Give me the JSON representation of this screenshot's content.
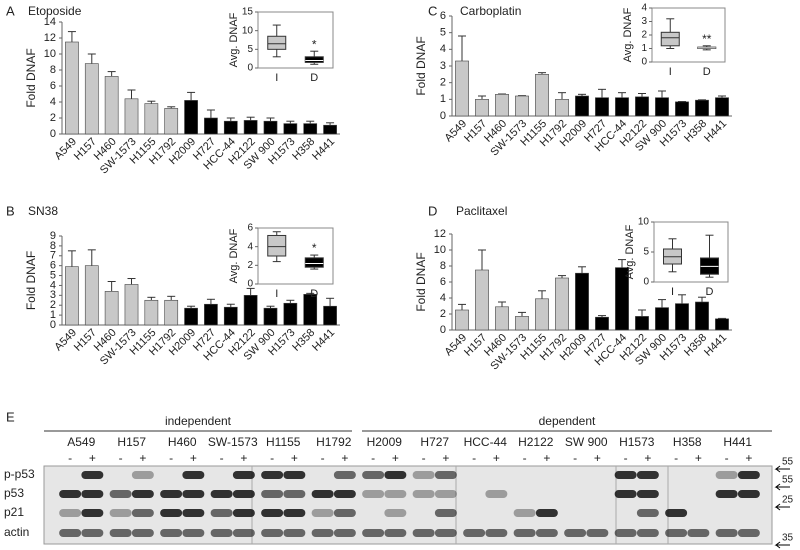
{
  "chart_data": [
    {
      "type": "bar",
      "label": "A",
      "title": "Etoposide",
      "ylabel": "Fold DNAF",
      "categories": [
        "A549",
        "H157",
        "H460",
        "SW-1573",
        "H1155",
        "H1792",
        "H2009",
        "H727",
        "HCC-44",
        "H2122",
        "SW 900",
        "H1573",
        "H358",
        "H441"
      ],
      "values": [
        11.5,
        8.8,
        7.2,
        4.4,
        3.8,
        3.2,
        4.2,
        2.0,
        1.6,
        1.7,
        1.6,
        1.3,
        1.3,
        1.1
      ],
      "errors": [
        1.3,
        1.2,
        0.6,
        1.1,
        0.3,
        0.2,
        1.0,
        1.0,
        0.4,
        0.4,
        0.4,
        0.3,
        0.3,
        0.3
      ],
      "colors": [
        "#c8c8c8",
        "#c8c8c8",
        "#c8c8c8",
        "#c8c8c8",
        "#c8c8c8",
        "#c8c8c8",
        "#000000",
        "#000000",
        "#000000",
        "#000000",
        "#000000",
        "#000000",
        "#000000",
        "#000000"
      ],
      "ylim": [
        0,
        14
      ],
      "yticks": [
        0,
        2,
        4,
        6,
        8,
        10,
        12,
        14
      ],
      "inset": {
        "type": "box",
        "ylabel": "Avg. DNAF",
        "categories": [
          "I",
          "D"
        ],
        "boxes": [
          {
            "min": 3,
            "q1": 5,
            "median": 6.5,
            "q3": 8.5,
            "max": 11.5
          },
          {
            "min": 1,
            "q1": 1.5,
            "median": 2,
            "q3": 3,
            "max": 4.5
          }
        ],
        "colors": [
          "#c8c8c8",
          "#000000"
        ],
        "ylim": [
          0,
          15
        ],
        "yticks": [
          0,
          5,
          10,
          15
        ],
        "annotation": "*"
      }
    },
    {
      "type": "bar",
      "label": "B",
      "title": "SN38",
      "ylabel": "Fold DNAF",
      "categories": [
        "A549",
        "H157",
        "H460",
        "SW-1573",
        "H1155",
        "H1792",
        "H2009",
        "H727",
        "HCC-44",
        "H2122",
        "SW 900",
        "H1573",
        "H358",
        "H441"
      ],
      "values": [
        5.9,
        6.0,
        3.4,
        4.1,
        2.5,
        2.5,
        1.7,
        2.1,
        1.8,
        3.0,
        1.7,
        2.2,
        3.1,
        1.9
      ],
      "errors": [
        1.6,
        1.6,
        1.0,
        0.6,
        0.3,
        0.4,
        0.2,
        0.5,
        0.3,
        0.7,
        0.2,
        0.3,
        0.1,
        0.8
      ],
      "colors": [
        "#c8c8c8",
        "#c8c8c8",
        "#c8c8c8",
        "#c8c8c8",
        "#c8c8c8",
        "#c8c8c8",
        "#000000",
        "#000000",
        "#000000",
        "#000000",
        "#000000",
        "#000000",
        "#000000",
        "#000000"
      ],
      "ylim": [
        0,
        9
      ],
      "yticks": [
        0,
        1,
        2,
        3,
        4,
        5,
        6,
        7,
        8,
        9
      ],
      "inset": {
        "type": "box",
        "ylabel": "Avg. DNAF",
        "categories": [
          "I",
          "D"
        ],
        "boxes": [
          {
            "min": 2.4,
            "q1": 3,
            "median": 4,
            "q3": 5.2,
            "max": 5.6
          },
          {
            "min": 1.6,
            "q1": 1.8,
            "median": 2.2,
            "q3": 2.8,
            "max": 3.1
          }
        ],
        "colors": [
          "#c8c8c8",
          "#000000"
        ],
        "ylim": [
          0,
          6
        ],
        "yticks": [
          0,
          2,
          4,
          6
        ],
        "annotation": "*"
      }
    },
    {
      "type": "bar",
      "label": "C",
      "title": "Carboplatin",
      "ylabel": "Fold DNAF",
      "categories": [
        "A549",
        "H157",
        "H460",
        "SW-1573",
        "H1155",
        "H1792",
        "H2009",
        "H727",
        "HCC-44",
        "H2122",
        "SW 900",
        "H1573",
        "H358",
        "H441"
      ],
      "values": [
        3.3,
        1.0,
        1.3,
        1.2,
        2.5,
        1.0,
        1.2,
        1.1,
        1.1,
        1.15,
        1.1,
        0.85,
        0.95,
        1.1
      ],
      "errors": [
        1.5,
        0.2,
        0.02,
        0.02,
        0.1,
        0.4,
        0.1,
        0.5,
        0.3,
        0.2,
        0.4,
        0.02,
        0.02,
        0.1
      ],
      "colors": [
        "#c8c8c8",
        "#c8c8c8",
        "#c8c8c8",
        "#c8c8c8",
        "#c8c8c8",
        "#c8c8c8",
        "#000000",
        "#000000",
        "#000000",
        "#000000",
        "#000000",
        "#000000",
        "#000000",
        "#000000"
      ],
      "ylim": [
        0,
        6
      ],
      "yticks": [
        0,
        1,
        2,
        3,
        4,
        5,
        6
      ],
      "inset": {
        "type": "box",
        "ylabel": "Avg. DNAF",
        "categories": [
          "I",
          "D"
        ],
        "boxes": [
          {
            "min": 1,
            "q1": 1.2,
            "median": 1.8,
            "q3": 2.2,
            "max": 3.2
          },
          {
            "min": 0.9,
            "q1": 1,
            "median": 1.05,
            "q3": 1.1,
            "max": 1.2
          }
        ],
        "colors": [
          "#c8c8c8",
          "#000000"
        ],
        "ylim": [
          0,
          4
        ],
        "yticks": [
          0,
          1,
          2,
          3,
          4
        ],
        "annotation": "**"
      }
    },
    {
      "type": "bar",
      "label": "D",
      "title": "Paclitaxel",
      "ylabel": "Fold DNAF",
      "categories": [
        "A549",
        "H157",
        "H460",
        "SW-1573",
        "H1155",
        "H1792",
        "H2009",
        "H727",
        "HCC-44",
        "H2122",
        "SW 900",
        "H1573",
        "H358",
        "H441"
      ],
      "values": [
        2.5,
        7.5,
        2.9,
        1.7,
        3.9,
        6.5,
        7.1,
        1.6,
        7.8,
        1.7,
        2.8,
        3.3,
        3.5,
        1.4
      ],
      "errors": [
        0.7,
        2.5,
        0.6,
        0.5,
        1.0,
        0.3,
        0.8,
        0.2,
        1.0,
        0.8,
        1.0,
        1.1,
        0.6,
        0.05
      ],
      "colors": [
        "#c8c8c8",
        "#c8c8c8",
        "#c8c8c8",
        "#c8c8c8",
        "#c8c8c8",
        "#c8c8c8",
        "#000000",
        "#000000",
        "#000000",
        "#000000",
        "#000000",
        "#000000",
        "#000000",
        "#000000"
      ],
      "ylim": [
        0,
        12
      ],
      "yticks": [
        0,
        2,
        4,
        6,
        8,
        10,
        12
      ],
      "inset": {
        "type": "box",
        "ylabel": "Avg. DNAF",
        "categories": [
          "I",
          "D"
        ],
        "boxes": [
          {
            "min": 1.7,
            "q1": 3,
            "median": 4.2,
            "q3": 5.5,
            "max": 7.2
          },
          {
            "min": 0.8,
            "q1": 1.3,
            "median": 2.6,
            "q3": 4,
            "max": 7.8
          }
        ],
        "colors": [
          "#c8c8c8",
          "#000000"
        ],
        "ylim": [
          0,
          10
        ],
        "yticks": [
          0,
          5,
          10
        ]
      }
    }
  ],
  "blot": {
    "label": "E",
    "groups": [
      "independent",
      "dependent"
    ],
    "cell_lines": [
      "A549",
      "H157",
      "H460",
      "SW-1573",
      "H1155",
      "H1792",
      "H2009",
      "H727",
      "HCC-44",
      "H2122",
      "SW 900",
      "H1573",
      "H358",
      "H441"
    ],
    "treatments": [
      "-",
      "+"
    ],
    "rows": [
      "p-p53",
      "p53",
      "p21",
      "actin"
    ],
    "markers": [
      55,
      55,
      25,
      35
    ]
  }
}
